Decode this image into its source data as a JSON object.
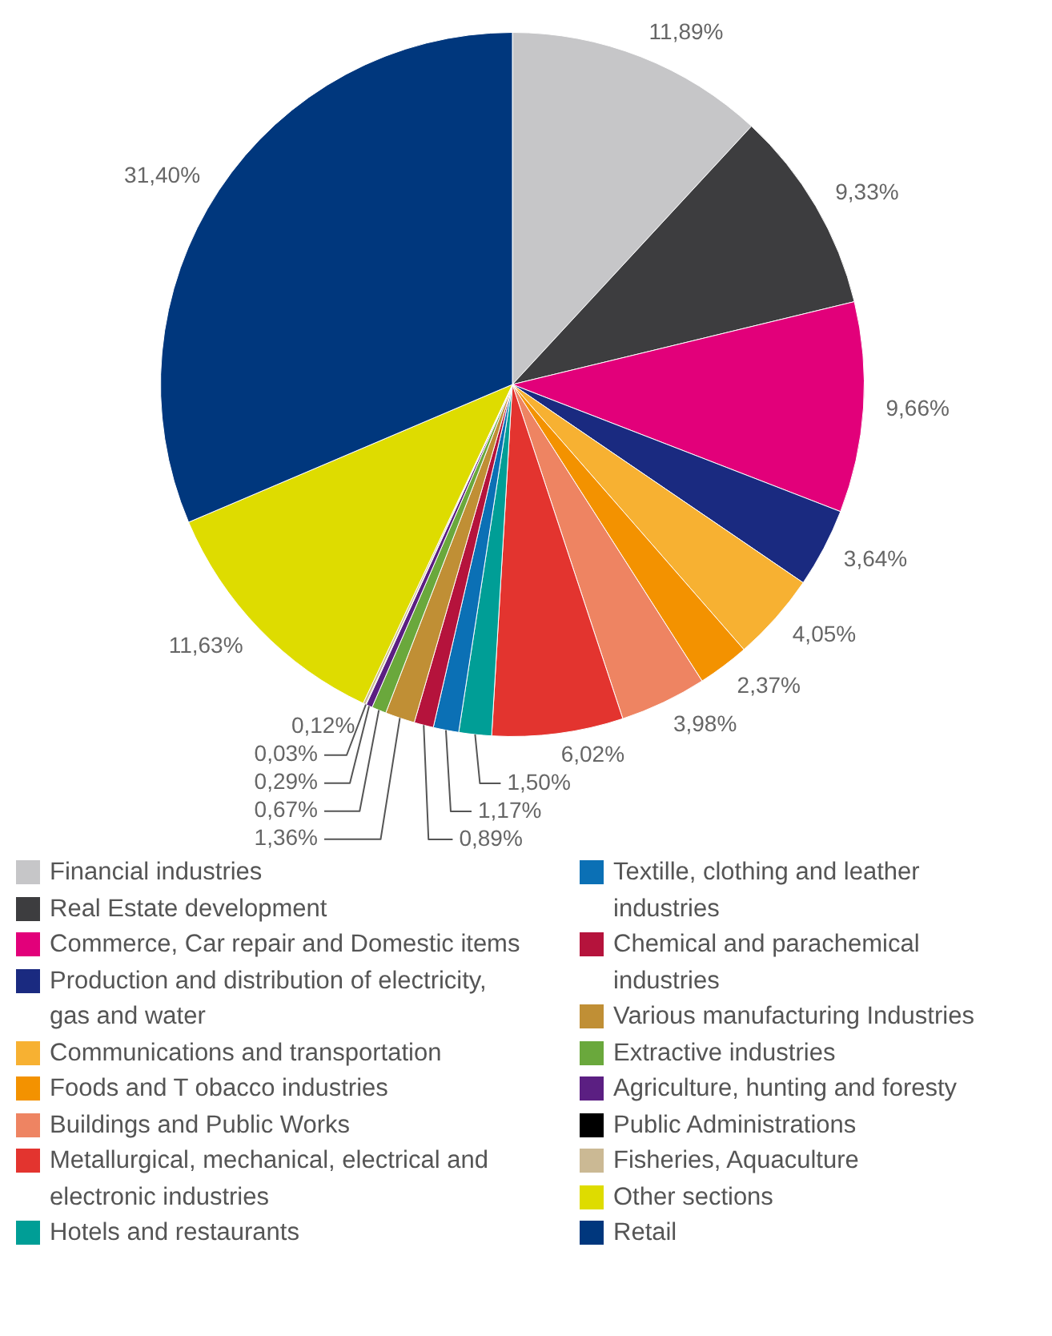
{
  "chart_data": {
    "type": "pie",
    "legend": "bottom",
    "categories": [
      "Financial industries",
      "Real Estate development",
      "Commerce, Car repair and Domestic items",
      "Production and distribution of electricity, gas and water",
      "Communications and transportation",
      "Foods and T obacco industries",
      "Buildings and Public Works",
      "Metallurgical, mechanical, electrical and electronic industries",
      "Hotels and restaurants",
      "Textille, clothing and leather industries",
      "Chemical and parachemical industries",
      "Various manufacturing Industries",
      "Extractive industries",
      "Agriculture, hunting and foresty",
      "Public Administrations",
      "Fisheries, Aquaculture",
      "Other sections",
      "Retail"
    ],
    "values": [
      11.89,
      9.33,
      9.66,
      3.64,
      4.05,
      2.37,
      3.98,
      6.02,
      1.5,
      1.17,
      0.89,
      1.36,
      0.67,
      0.29,
      0.03,
      0.12,
      11.63,
      31.4
    ],
    "value_labels": [
      "11,89%",
      "9,33%",
      "9,66%",
      "3,64%",
      "4,05%",
      "2,37%",
      "3,98%",
      "6,02%",
      "1,50%",
      "1,17%",
      "0,89%",
      "1,36%",
      "0,67%",
      "0,29%",
      "0,03%",
      "0,12%",
      "11,63%",
      "31,40%"
    ],
    "colors": [
      "#c6c6c8",
      "#3d3d3f",
      "#e2007a",
      "#1a2a80",
      "#f7b132",
      "#f39200",
      "#ee8462",
      "#e3342f",
      "#009e96",
      "#0b70b5",
      "#b5133c",
      "#c08f35",
      "#6aa83c",
      "#5b1f82",
      "#000000",
      "#cbb994",
      "#dedc00",
      "#00377d"
    ]
  }
}
